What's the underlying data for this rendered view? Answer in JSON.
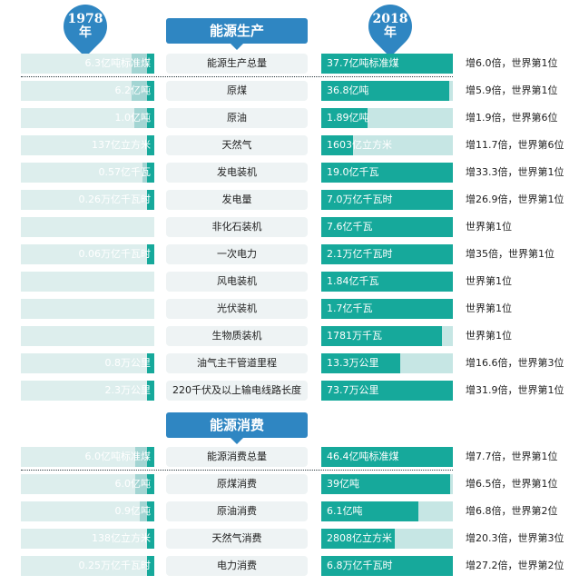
{
  "header": {
    "left_badge": {
      "year": "1978",
      "suffix": "年"
    },
    "right_badge": {
      "year": "2018",
      "suffix": "年"
    }
  },
  "sections": {
    "production": {
      "title": "能源生产"
    },
    "consumption": {
      "title": "能源消费"
    }
  },
  "colors": {
    "badge_blue": "#2f86c2",
    "bar_teal": "#16a99b",
    "bar_light_teal": "#a3d5d3",
    "bar_track": "#ddeeed",
    "bar_track_right": "#c6e6e4",
    "label_bg": "#eef3f4"
  },
  "chart_data": {
    "type": "bar",
    "layout": "butterfly",
    "left_series_name": "1978",
    "right_series_name": "2018",
    "production": [
      {
        "category": "能源生产总量",
        "v1978": "6.3亿吨标准煤",
        "v2018": "37.7亿吨标准煤",
        "note": "增6.0倍，世界第1位",
        "bar1978": 0.17,
        "bar2018": 1.0
      },
      {
        "category": "原煤",
        "v1978": "6.2亿吨",
        "v2018": "36.8亿吨",
        "note": "增5.9倍，世界第1位",
        "bar1978": 0.17,
        "bar2018": 0.97
      },
      {
        "category": "原油",
        "v1978": "1.0亿吨",
        "v2018": "1.89亿吨",
        "note": "增1.9倍，世界第6位",
        "bar1978": 0.15,
        "bar2018": 0.35
      },
      {
        "category": "天然气",
        "v1978": "137亿立方米",
        "v2018": "1603亿立方米",
        "note": "增11.7倍，世界第6位",
        "bar1978": 0.03,
        "bar2018": 0.24
      },
      {
        "category": "发电装机",
        "v1978": "0.57亿千瓦",
        "v2018": "19.0亿千瓦",
        "note": "增33.3倍，世界第1位",
        "bar1978": 0.09,
        "bar2018": 1.0
      },
      {
        "category": "发电量",
        "v1978": "0.26万亿千瓦时",
        "v2018": "7.0万亿千瓦时",
        "note": "增26.9倍，世界第1位",
        "bar1978": 0.05,
        "bar2018": 1.0
      },
      {
        "category": "非化石装机",
        "v1978": "",
        "v2018": "7.6亿千瓦",
        "note": "世界第1位",
        "bar1978": 0,
        "bar2018": 1.0
      },
      {
        "category": "一次电力",
        "v1978": "0.06万亿千瓦时",
        "v2018": "2.1万亿千瓦时",
        "note": "增35倍，世界第1位",
        "bar1978": 0.04,
        "bar2018": 1.0
      },
      {
        "category": "风电装机",
        "v1978": "",
        "v2018": "1.84亿千瓦",
        "note": "世界第1位",
        "bar1978": 0,
        "bar2018": 1.0
      },
      {
        "category": "光伏装机",
        "v1978": "",
        "v2018": "1.7亿千瓦",
        "note": "世界第1位",
        "bar1978": 0,
        "bar2018": 1.0
      },
      {
        "category": "生物质装机",
        "v1978": "",
        "v2018": "1781万千瓦",
        "note": "世界第1位",
        "bar1978": 0,
        "bar2018": 0.92
      },
      {
        "category": "油气主干管道里程",
        "v1978": "0.8万公里",
        "v2018": "13.3万公里",
        "note": "增16.6倍，世界第3位",
        "bar1978": 0.05,
        "bar2018": 0.6
      },
      {
        "category": "220千伏及以上输电线路长度",
        "v1978": "2.3万公里",
        "v2018": "73.7万公里",
        "note": "增31.9倍，世界第1位",
        "bar1978": 0.05,
        "bar2018": 1.0
      }
    ],
    "consumption": [
      {
        "category": "能源消费总量",
        "v1978": "6.0亿吨标准煤",
        "v2018": "46.4亿吨标准煤",
        "note": "增7.7倍，世界第1位",
        "bar1978": 0.14,
        "bar2018": 1.0
      },
      {
        "category": "原煤消费",
        "v1978": "6.0亿吨",
        "v2018": "39亿吨",
        "note": "增6.5倍，世界第1位",
        "bar1978": 0.14,
        "bar2018": 0.98
      },
      {
        "category": "原油消费",
        "v1978": "0.9亿吨",
        "v2018": "6.1亿吨",
        "note": "增6.8倍，世界第2位",
        "bar1978": 0.11,
        "bar2018": 0.74
      },
      {
        "category": "天然气消费",
        "v1978": "138亿立方米",
        "v2018": "2808亿立方米",
        "note": "增20.3倍，世界第3位",
        "bar1978": 0.04,
        "bar2018": 0.56
      },
      {
        "category": "电力消费",
        "v1978": "0.25万亿千瓦时",
        "v2018": "6.8万亿千瓦时",
        "note": "增27.2倍，世界第2位",
        "bar1978": 0.05,
        "bar2018": 1.0
      }
    ]
  }
}
